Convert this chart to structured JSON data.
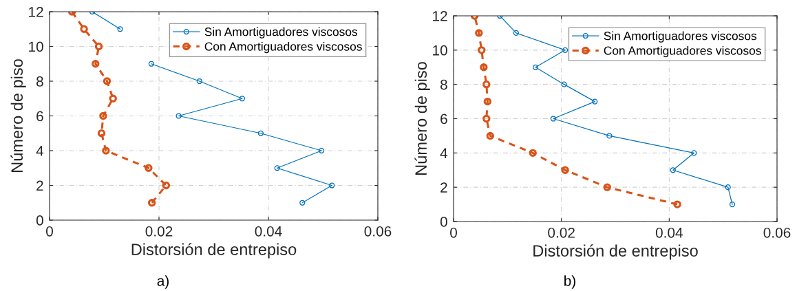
{
  "chart_data": [
    {
      "type": "line",
      "xlabel": "Distorsión de entrepiso",
      "ylabel": "Número de piso",
      "annotations": [
        "a)"
      ],
      "xlim": [
        0,
        0.06
      ],
      "xticks": [
        0,
        0.02,
        0.04,
        0.06
      ],
      "ylim": [
        0,
        12
      ],
      "yticks": [
        0,
        2,
        4,
        6,
        8,
        10,
        12
      ],
      "grid": true,
      "legend": "top right",
      "marker": "circle",
      "series": [
        {
          "name": "Sin Amortiguadores viscosos",
          "color": "#0072bd",
          "line_style": "solid",
          "x": [
            0.0462,
            0.0516,
            0.0416,
            0.0497,
            0.0386,
            0.0236,
            0.0352,
            0.0274,
            0.0186,
            null,
            0.0129,
            0.0078
          ],
          "values": [
            1,
            2,
            3,
            4,
            5,
            6,
            7,
            8,
            9,
            null,
            11,
            12
          ]
        },
        {
          "name": "Con Amortiguadores viscosos",
          "color": "#d95319",
          "line_style": "dashed",
          "x": [
            0.0187,
            0.0213,
            0.0181,
            0.0103,
            0.0095,
            0.0098,
            0.0116,
            0.0105,
            0.0084,
            0.009,
            0.0063,
            0.0041
          ],
          "values": [
            1,
            2,
            3,
            4,
            5,
            6,
            7,
            8,
            9,
            10,
            11,
            12
          ]
        }
      ]
    },
    {
      "type": "line",
      "xlabel": "Distorsión de entrepiso",
      "ylabel": "Número de piso",
      "annotations": [
        "b)"
      ],
      "xlim": [
        0,
        0.06
      ],
      "xticks": [
        0,
        0.02,
        0.04,
        0.06
      ],
      "ylim": [
        0,
        12
      ],
      "yticks": [
        0,
        2,
        4,
        6,
        8,
        10,
        12
      ],
      "grid": true,
      "legend": "top right",
      "marker": "circle",
      "series": [
        {
          "name": "Sin Amortiguadores viscosos",
          "color": "#0072bd",
          "line_style": "solid",
          "x": [
            0.0517,
            0.0509,
            0.0407,
            0.0446,
            0.0289,
            0.0185,
            0.0262,
            0.0205,
            0.0152,
            0.0207,
            0.0116,
            0.0086
          ],
          "values": [
            1,
            2,
            3,
            4,
            5,
            6,
            7,
            8,
            9,
            10,
            11,
            12
          ]
        },
        {
          "name": "Con Amortiguadores viscosos",
          "color": "#d95319",
          "line_style": "dashed",
          "x": [
            0.0415,
            0.0285,
            0.0207,
            0.0147,
            0.0068,
            0.0061,
            0.0063,
            0.0061,
            0.0056,
            0.0052,
            0.0047,
            0.0039
          ],
          "values": [
            1,
            2,
            3,
            4,
            5,
            6,
            7,
            8,
            9,
            10,
            11,
            12
          ]
        }
      ]
    }
  ]
}
